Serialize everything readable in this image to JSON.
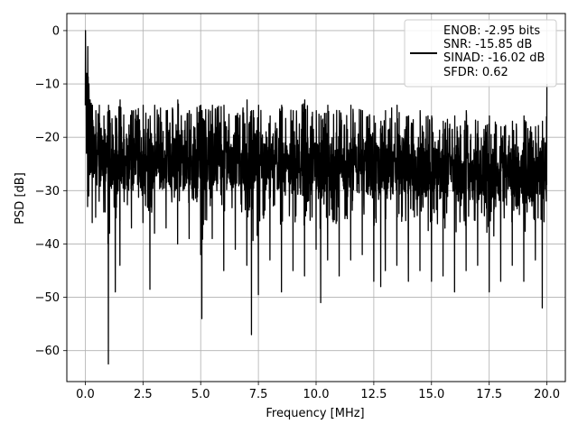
{
  "chart_data": {
    "type": "line",
    "xlabel": "Frequency [MHz]",
    "ylabel": "PSD [dB]",
    "xlim": [
      -0.8,
      20.8
    ],
    "ylim": [
      -65.8,
      3.2
    ],
    "xticks": [
      0.0,
      2.5,
      5.0,
      7.5,
      10.0,
      12.5,
      15.0,
      17.5,
      20.0
    ],
    "xtick_labels": [
      "0.0",
      "2.5",
      "5.0",
      "7.5",
      "10.0",
      "12.5",
      "15.0",
      "17.5",
      "20.0"
    ],
    "yticks": [
      0,
      -10,
      -20,
      -30,
      -40,
      -50,
      -60
    ],
    "ytick_labels": [
      "0",
      "−10",
      "−20",
      "−30",
      "−40",
      "−50",
      "−60"
    ],
    "grid": true,
    "legend_position": "top-right",
    "series": [
      {
        "color": "#000000",
        "x": [
          0.0,
          0.05,
          0.1,
          0.15,
          0.2,
          0.3,
          0.45,
          0.6,
          0.8,
          1.0,
          1.05,
          1.3,
          1.5,
          2.0,
          2.5,
          2.8,
          3.0,
          3.5,
          4.0,
          4.5,
          5.0,
          5.05,
          5.5,
          6.0,
          6.5,
          7.0,
          7.2,
          7.5,
          8.0,
          8.5,
          9.0,
          9.5,
          10.0,
          10.2,
          10.5,
          11.0,
          11.5,
          12.0,
          12.5,
          12.8,
          13.0,
          13.5,
          14.0,
          14.5,
          15.0,
          15.5,
          16.0,
          16.5,
          17.0,
          17.5,
          18.0,
          18.5,
          19.0,
          19.5,
          19.8,
          20.0
        ],
        "upper": [
          0,
          -8,
          -3,
          -10,
          -13,
          -14,
          -15,
          -14,
          -16,
          -14,
          -15,
          -16,
          -13,
          -15,
          -14,
          -16,
          -14,
          -15,
          -13,
          -15,
          -14,
          -15,
          -14,
          -14,
          -16,
          -13,
          -15,
          -14,
          -16,
          -14,
          -15,
          -13,
          -15,
          -16,
          -14,
          -15,
          -14,
          -15,
          -16,
          -17,
          -15,
          -14,
          -16,
          -15,
          -16,
          -17,
          -16,
          -15,
          -17,
          -16,
          -18,
          -17,
          -16,
          -18,
          -17,
          -10
        ],
        "lower": [
          -14,
          -23,
          -33,
          -31,
          -27,
          -36,
          -35,
          -32,
          -34,
          -62.5,
          -38,
          -49,
          -44,
          -37,
          -36,
          -48.5,
          -38,
          -37,
          -40,
          -39,
          -42,
          -54,
          -39,
          -45,
          -41,
          -44,
          -57,
          -49.5,
          -43,
          -49,
          -45,
          -46,
          -41,
          -51,
          -43,
          -46,
          -43,
          -42,
          -47,
          -48,
          -45,
          -44,
          -47,
          -45,
          -47,
          -46,
          -49,
          -45,
          -44,
          -49,
          -47,
          -44,
          -47,
          -43,
          -52,
          -36
        ],
        "center": [
          -10,
          -16,
          -18,
          -20,
          -21,
          -23,
          -24,
          -24,
          -25,
          -26,
          -25,
          -25,
          -25,
          -25,
          -25,
          -25,
          -25,
          -25,
          -25,
          -25,
          -25,
          -25,
          -25,
          -25,
          -25,
          -25,
          -25,
          -25,
          -25,
          -26,
          -26,
          -26,
          -26,
          -26,
          -26,
          -26,
          -26,
          -26,
          -26,
          -26,
          -26,
          -26,
          -26,
          -26,
          -27,
          -27,
          -27,
          -27,
          -27,
          -27,
          -27,
          -27,
          -27,
          -27,
          -27,
          -25
        ]
      }
    ],
    "legend": {
      "lines": [
        "ENOB: -2.95 bits",
        "SNR: -15.85 dB",
        "SINAD: -16.02 dB",
        "SFDR: 0.62"
      ]
    }
  }
}
